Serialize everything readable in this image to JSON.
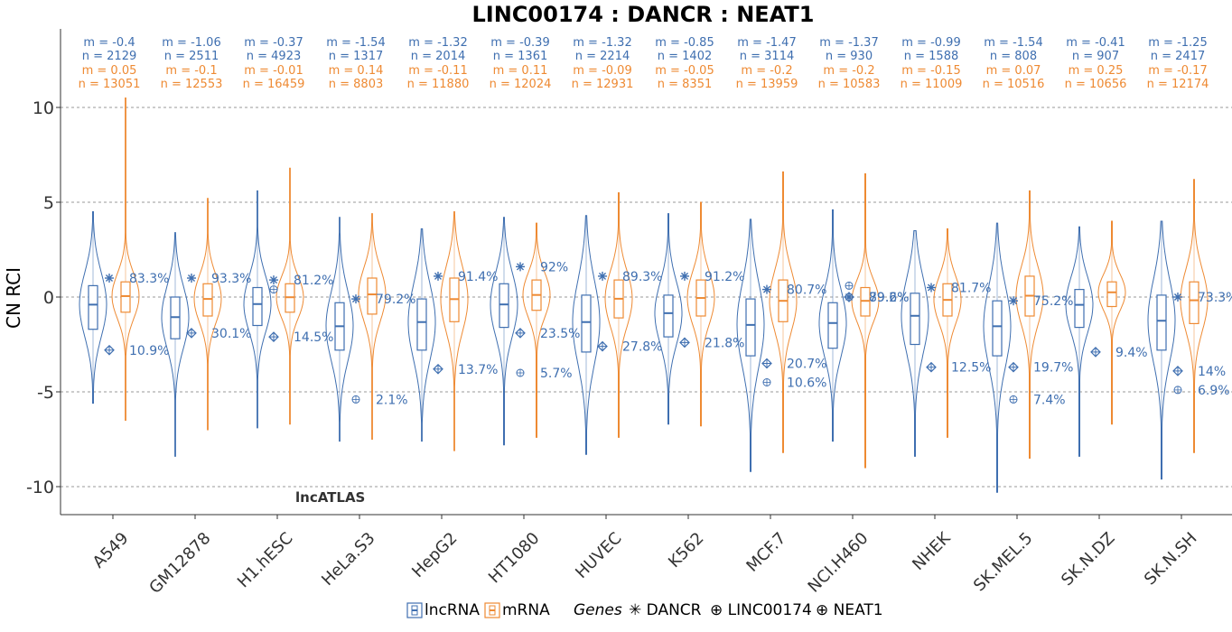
{
  "colors": {
    "lncRNA": "#3F6FB0",
    "mRNA": "#EE8A33",
    "grid": "#999999",
    "axis": "#333333"
  },
  "chart_data": {
    "type": "violin",
    "title": "LINC00174 : DANCR : NEAT1",
    "xlabel": "",
    "ylabel": "CN RCI",
    "ylim": [
      -11.5,
      13.8
    ],
    "yticks": [
      10,
      5,
      0,
      -5,
      -10
    ],
    "ytick_labels": [
      "10",
      "5",
      "0",
      "-5",
      "-10"
    ],
    "grid": "horizontal dashed",
    "watermark": "lncATLAS",
    "categories": [
      "A549",
      "GM12878",
      "H1.hESC",
      "HeLa.S3",
      "HepG2",
      "HT1080",
      "HUVEC",
      "K562",
      "MCF.7",
      "NCI.H460",
      "NHEK",
      "SK.MEL.5",
      "SK.N.DZ",
      "SK.N.SH"
    ],
    "series": [
      {
        "name": "lncRNA",
        "m_labels": [
          "m = -0.4",
          "m = -1.06",
          "m = -0.37",
          "m = -1.54",
          "m = -1.32",
          "m = -0.39",
          "m = -1.32",
          "m = -0.85",
          "m = -1.47",
          "m = -1.37",
          "m = -0.99",
          "m = -1.54",
          "m = -0.41",
          "m = -1.25"
        ],
        "n_labels": [
          "n = 2129",
          "n = 2511",
          "n = 4923",
          "n = 1317",
          "n = 2014",
          "n = 1361",
          "n = 2214",
          "n = 1402",
          "n = 3114",
          "n = 930",
          "n = 1588",
          "n = 808",
          "n = 907",
          "n = 2417"
        ],
        "median": [
          -0.4,
          -1.06,
          -0.37,
          -1.54,
          -1.32,
          -0.39,
          -1.32,
          -0.85,
          -1.47,
          -1.37,
          -0.99,
          -1.54,
          -0.41,
          -1.25
        ],
        "q1": [
          -1.7,
          -2.2,
          -1.5,
          -2.8,
          -2.8,
          -1.6,
          -2.9,
          -2.1,
          -3.1,
          -2.7,
          -2.5,
          -3.1,
          -1.6,
          -2.8
        ],
        "q3": [
          0.6,
          0.0,
          0.5,
          -0.3,
          -0.1,
          0.7,
          0.1,
          0.1,
          -0.1,
          -0.3,
          0.2,
          -0.2,
          0.4,
          0.1
        ],
        "min": [
          -5.6,
          -8.4,
          -6.9,
          -7.6,
          -7.6,
          -7.8,
          -8.3,
          -6.7,
          -9.2,
          -7.6,
          -8.4,
          -10.3,
          -8.4,
          -9.6
        ],
        "max": [
          4.5,
          3.4,
          5.6,
          4.2,
          3.6,
          4.2,
          4.3,
          4.4,
          4.1,
          4.6,
          3.5,
          3.9,
          3.7,
          4.0
        ]
      },
      {
        "name": "mRNA",
        "m_labels": [
          "m = 0.05",
          "m = -0.1",
          "m = -0.01",
          "m = 0.14",
          "m = -0.11",
          "m = 0.11",
          "m = -0.09",
          "m = -0.05",
          "m = -0.2",
          "m = -0.2",
          "m = -0.15",
          "m = 0.07",
          "m = 0.25",
          "m = -0.17"
        ],
        "n_labels": [
          "n = 13051",
          "n = 12553",
          "n = 16459",
          "n = 8803",
          "n = 11880",
          "n = 12024",
          "n = 12931",
          "n = 8351",
          "n = 13959",
          "n = 10583",
          "n = 11009",
          "n = 10516",
          "n = 10656",
          "n = 12174"
        ],
        "median": [
          0.05,
          -0.1,
          -0.01,
          0.14,
          -0.11,
          0.11,
          -0.09,
          -0.05,
          -0.2,
          -0.2,
          -0.15,
          0.07,
          0.25,
          -0.17
        ],
        "q1": [
          -0.8,
          -1.0,
          -0.8,
          -0.9,
          -1.3,
          -0.7,
          -1.1,
          -1.0,
          -1.3,
          -1.0,
          -1.0,
          -1.0,
          -0.5,
          -1.4
        ],
        "q3": [
          0.8,
          0.7,
          0.7,
          1.0,
          1.0,
          0.9,
          0.9,
          0.9,
          0.9,
          0.5,
          0.7,
          1.1,
          0.8,
          0.8
        ],
        "min": [
          -6.5,
          -7.0,
          -6.7,
          -7.5,
          -8.1,
          -7.4,
          -7.4,
          -6.8,
          -8.2,
          -9.0,
          -7.4,
          -8.5,
          -6.7,
          -8.2
        ],
        "max": [
          10.5,
          5.2,
          6.8,
          4.4,
          4.5,
          3.9,
          5.5,
          5.0,
          6.6,
          6.5,
          3.6,
          5.6,
          4.0,
          6.2
        ]
      }
    ],
    "genes": [
      {
        "name": "DANCR",
        "symbol": "✳",
        "values": [
          1.0,
          1.0,
          0.9,
          -0.1,
          1.1,
          1.6,
          1.1,
          1.1,
          0.4,
          0.0,
          0.5,
          -0.2,
          null,
          0.0
        ],
        "pct_labels": [
          "83.3%",
          "93.3%",
          "81.2%",
          "79.2%",
          "91.4%",
          "92%",
          "89.3%",
          "91.2%",
          "80.7%",
          "79.2%",
          "81.7%",
          "75.2%",
          "",
          "73.3%"
        ]
      },
      {
        "name": "LINC00174",
        "symbol": "⊕",
        "values": [
          -2.8,
          -1.9,
          -2.1,
          null,
          -3.8,
          -1.9,
          -2.6,
          -2.4,
          -3.5,
          0.0,
          -3.7,
          -3.7,
          -2.9,
          -3.9
        ],
        "pct_labels": [
          "10.9%",
          "30.1%",
          "14.5%",
          "",
          "13.7%",
          "23.5%",
          "27.8%",
          "21.8%",
          "20.7%",
          "89.6%",
          "12.5%",
          "19.7%",
          "9.4%",
          "14%"
        ]
      },
      {
        "name": "NEAT1",
        "symbol": "⊕",
        "values": [
          null,
          null,
          0.4,
          -5.4,
          null,
          -4.0,
          null,
          null,
          -4.5,
          0.6,
          null,
          -5.4,
          null,
          -4.9
        ],
        "pct_labels": [
          "",
          "",
          "",
          "2.1%",
          "",
          "5.7%",
          "",
          "",
          "10.6%",
          "",
          "",
          "7.4%",
          "",
          "6.9%"
        ]
      }
    ],
    "legend": {
      "placement": "bottom",
      "items": [
        "lncRNA",
        "mRNA"
      ],
      "genes_title": "Genes",
      "genes": [
        "✳ DANCR",
        "⊕ LINC00174",
        "⊕ NEAT1"
      ]
    }
  }
}
